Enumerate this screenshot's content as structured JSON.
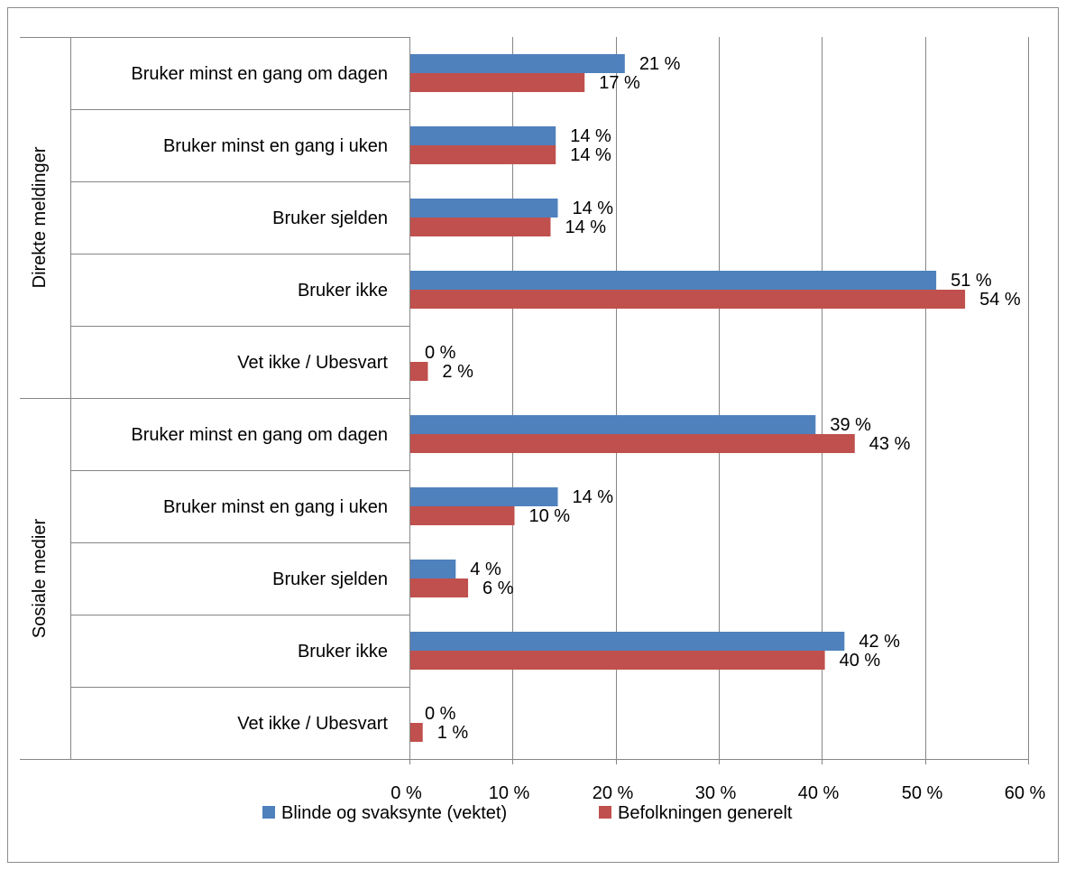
{
  "chart_data": {
    "type": "bar",
    "orientation": "horizontal",
    "groups": [
      {
        "name": "Direkte meldinger",
        "categories": [
          "Bruker minst en gang om dagen",
          "Bruker minst en gang i uken",
          "Bruker sjelden",
          "Bruker ikke",
          "Vet ikke / Ubesvart"
        ]
      },
      {
        "name": "Sosiale medier",
        "categories": [
          "Bruker minst en gang om dagen",
          "Bruker minst en gang i uken",
          "Bruker sjelden",
          "Bruker ikke",
          "Vet ikke / Ubesvart"
        ]
      }
    ],
    "series": [
      {
        "name": "Blinde og svaksynte (vektet)",
        "color": "#4f81bd",
        "values": [
          20.8,
          14.1,
          14.3,
          51.0,
          0.0,
          39.3,
          14.3,
          4.4,
          42.1,
          0.0
        ],
        "labels": [
          "21 %",
          "14 %",
          "14 %",
          "51 %",
          "0 %",
          "39 %",
          "14 %",
          "4 %",
          "42 %",
          "0 %"
        ]
      },
      {
        "name": "Befolkningen generelt",
        "color": "#c0504d",
        "values": [
          16.9,
          14.1,
          13.6,
          53.8,
          1.7,
          43.1,
          10.1,
          5.6,
          40.2,
          1.2
        ],
        "labels": [
          "17 %",
          "14 %",
          "14 %",
          "54 %",
          "2 %",
          "43 %",
          "10 %",
          "6 %",
          "40 %",
          "1 %"
        ]
      }
    ],
    "xlim": [
      0,
      60
    ],
    "xticks": [
      0,
      10,
      20,
      30,
      40,
      50,
      60
    ],
    "xtick_labels": [
      "0 %",
      "10 %",
      "20 %",
      "30 %",
      "40 %",
      "50 %",
      "60 %"
    ],
    "grid": true,
    "legend_position": "bottom",
    "title": "",
    "xlabel": "",
    "ylabel": ""
  }
}
